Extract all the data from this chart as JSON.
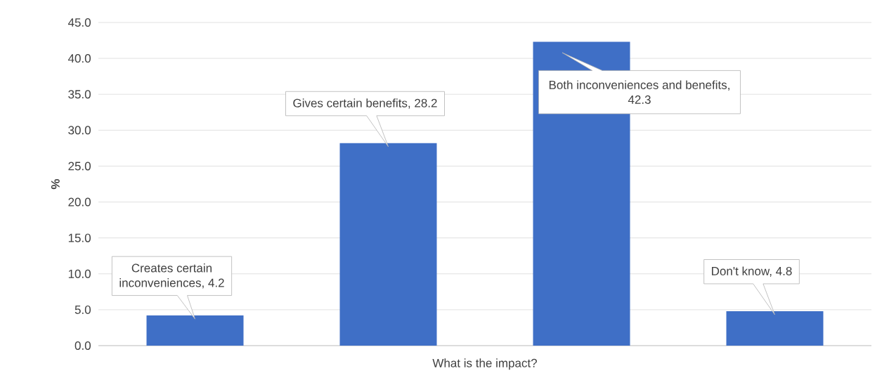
{
  "chart_data": {
    "type": "bar",
    "xlabel": "What is the impact?",
    "ylabel": "%",
    "categories": [
      null,
      null,
      null,
      null
    ],
    "values": [
      4.2,
      28.2,
      42.3,
      4.8
    ],
    "value_labels": [
      "Creates certain inconveniences, 4.2",
      "Gives certain benefits, 28.2",
      "Both inconveniences and benefits, 42.3",
      "Don't know, 4.8"
    ],
    "color": "#3f6fc6",
    "ylim": [
      0,
      45
    ],
    "yticks": [
      {
        "value": 0,
        "label": "0.0"
      },
      {
        "value": 5,
        "label": "5.0"
      },
      {
        "value": 10,
        "label": "10.0"
      },
      {
        "value": 15,
        "label": "15.0"
      },
      {
        "value": 20,
        "label": "20.0"
      },
      {
        "value": 25,
        "label": "25.0"
      },
      {
        "value": 30,
        "label": "30.0"
      },
      {
        "value": 35,
        "label": "35.0"
      },
      {
        "value": 40,
        "label": "40.0"
      },
      {
        "value": 45,
        "label": "45.0"
      }
    ],
    "grid": "y"
  }
}
